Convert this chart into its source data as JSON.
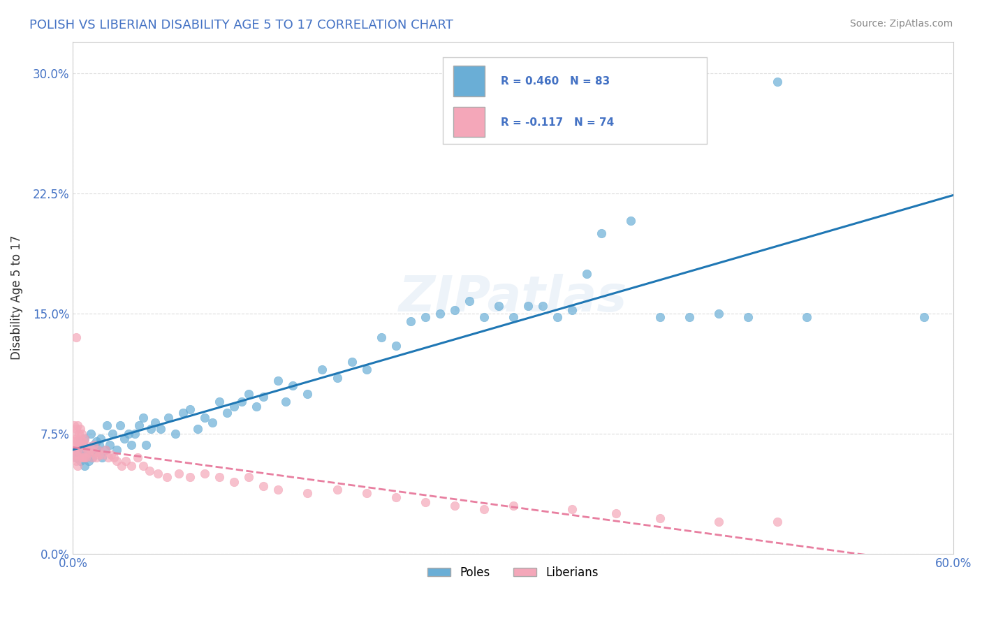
{
  "title": "POLISH VS LIBERIAN DISABILITY AGE 5 TO 17 CORRELATION CHART",
  "source_text": "Source: ZipAtlas.com",
  "xlabel_ticks": [
    "0.0%",
    "60.0%"
  ],
  "ylabel_label": "Disability Age 5 to 17",
  "ylabel_ticks": [
    "0.0%",
    "7.5%",
    "15.0%",
    "22.5%",
    "30.0%"
  ],
  "xmin": 0.0,
  "xmax": 0.6,
  "ymin": 0.0,
  "ymax": 0.32,
  "poles_color": "#6aaed6",
  "liberians_color": "#f4a7b9",
  "trendline_poles_color": "#1f77b4",
  "trendline_liberians_color": "#e87fa0",
  "poles_data_x": [
    0.002,
    0.003,
    0.004,
    0.005,
    0.005,
    0.006,
    0.007,
    0.008,
    0.008,
    0.009,
    0.01,
    0.011,
    0.012,
    0.013,
    0.014,
    0.015,
    0.016,
    0.017,
    0.018,
    0.019,
    0.02,
    0.022,
    0.023,
    0.025,
    0.027,
    0.03,
    0.032,
    0.035,
    0.038,
    0.04,
    0.042,
    0.045,
    0.048,
    0.05,
    0.053,
    0.056,
    0.06,
    0.065,
    0.07,
    0.075,
    0.08,
    0.085,
    0.09,
    0.095,
    0.1,
    0.105,
    0.11,
    0.115,
    0.12,
    0.125,
    0.13,
    0.14,
    0.145,
    0.15,
    0.16,
    0.17,
    0.18,
    0.19,
    0.2,
    0.21,
    0.22,
    0.23,
    0.24,
    0.25,
    0.26,
    0.27,
    0.28,
    0.29,
    0.3,
    0.31,
    0.32,
    0.33,
    0.34,
    0.35,
    0.36,
    0.38,
    0.4,
    0.42,
    0.44,
    0.46,
    0.48,
    0.5,
    0.58
  ],
  "poles_data_y": [
    0.06,
    0.065,
    0.063,
    0.058,
    0.07,
    0.062,
    0.068,
    0.055,
    0.072,
    0.06,
    0.065,
    0.058,
    0.075,
    0.06,
    0.068,
    0.063,
    0.07,
    0.065,
    0.068,
    0.072,
    0.06,
    0.065,
    0.08,
    0.068,
    0.075,
    0.065,
    0.08,
    0.072,
    0.075,
    0.068,
    0.075,
    0.08,
    0.085,
    0.068,
    0.078,
    0.082,
    0.078,
    0.085,
    0.075,
    0.088,
    0.09,
    0.078,
    0.085,
    0.082,
    0.095,
    0.088,
    0.092,
    0.095,
    0.1,
    0.092,
    0.098,
    0.108,
    0.095,
    0.105,
    0.1,
    0.115,
    0.11,
    0.12,
    0.115,
    0.135,
    0.13,
    0.145,
    0.148,
    0.15,
    0.152,
    0.158,
    0.148,
    0.155,
    0.148,
    0.155,
    0.155,
    0.148,
    0.152,
    0.175,
    0.2,
    0.208,
    0.148,
    0.148,
    0.15,
    0.148,
    0.295,
    0.148,
    0.148
  ],
  "liberians_data_x": [
    0.001,
    0.001,
    0.001,
    0.001,
    0.001,
    0.002,
    0.002,
    0.002,
    0.002,
    0.002,
    0.002,
    0.003,
    0.003,
    0.003,
    0.003,
    0.004,
    0.004,
    0.004,
    0.005,
    0.005,
    0.005,
    0.006,
    0.006,
    0.006,
    0.007,
    0.007,
    0.008,
    0.008,
    0.009,
    0.009,
    0.01,
    0.011,
    0.012,
    0.013,
    0.014,
    0.015,
    0.016,
    0.017,
    0.018,
    0.02,
    0.022,
    0.024,
    0.026,
    0.028,
    0.03,
    0.033,
    0.036,
    0.04,
    0.044,
    0.048,
    0.052,
    0.058,
    0.064,
    0.072,
    0.08,
    0.09,
    0.1,
    0.11,
    0.12,
    0.13,
    0.14,
    0.16,
    0.18,
    0.2,
    0.22,
    0.24,
    0.26,
    0.28,
    0.3,
    0.34,
    0.37,
    0.4,
    0.44,
    0.48
  ],
  "liberians_data_y": [
    0.06,
    0.065,
    0.07,
    0.075,
    0.08,
    0.058,
    0.062,
    0.068,
    0.072,
    0.078,
    0.135,
    0.055,
    0.065,
    0.07,
    0.08,
    0.06,
    0.068,
    0.075,
    0.065,
    0.072,
    0.078,
    0.06,
    0.068,
    0.075,
    0.06,
    0.07,
    0.06,
    0.072,
    0.06,
    0.068,
    0.065,
    0.063,
    0.065,
    0.06,
    0.068,
    0.063,
    0.06,
    0.065,
    0.062,
    0.062,
    0.065,
    0.06,
    0.062,
    0.06,
    0.058,
    0.055,
    0.058,
    0.055,
    0.06,
    0.055,
    0.052,
    0.05,
    0.048,
    0.05,
    0.048,
    0.05,
    0.048,
    0.045,
    0.048,
    0.042,
    0.04,
    0.038,
    0.04,
    0.038,
    0.035,
    0.032,
    0.03,
    0.028,
    0.03,
    0.028,
    0.025,
    0.022,
    0.02,
    0.02
  ],
  "watermark_text": "ZIPatlas",
  "background_color": "#ffffff",
  "grid_color": "#cccccc"
}
